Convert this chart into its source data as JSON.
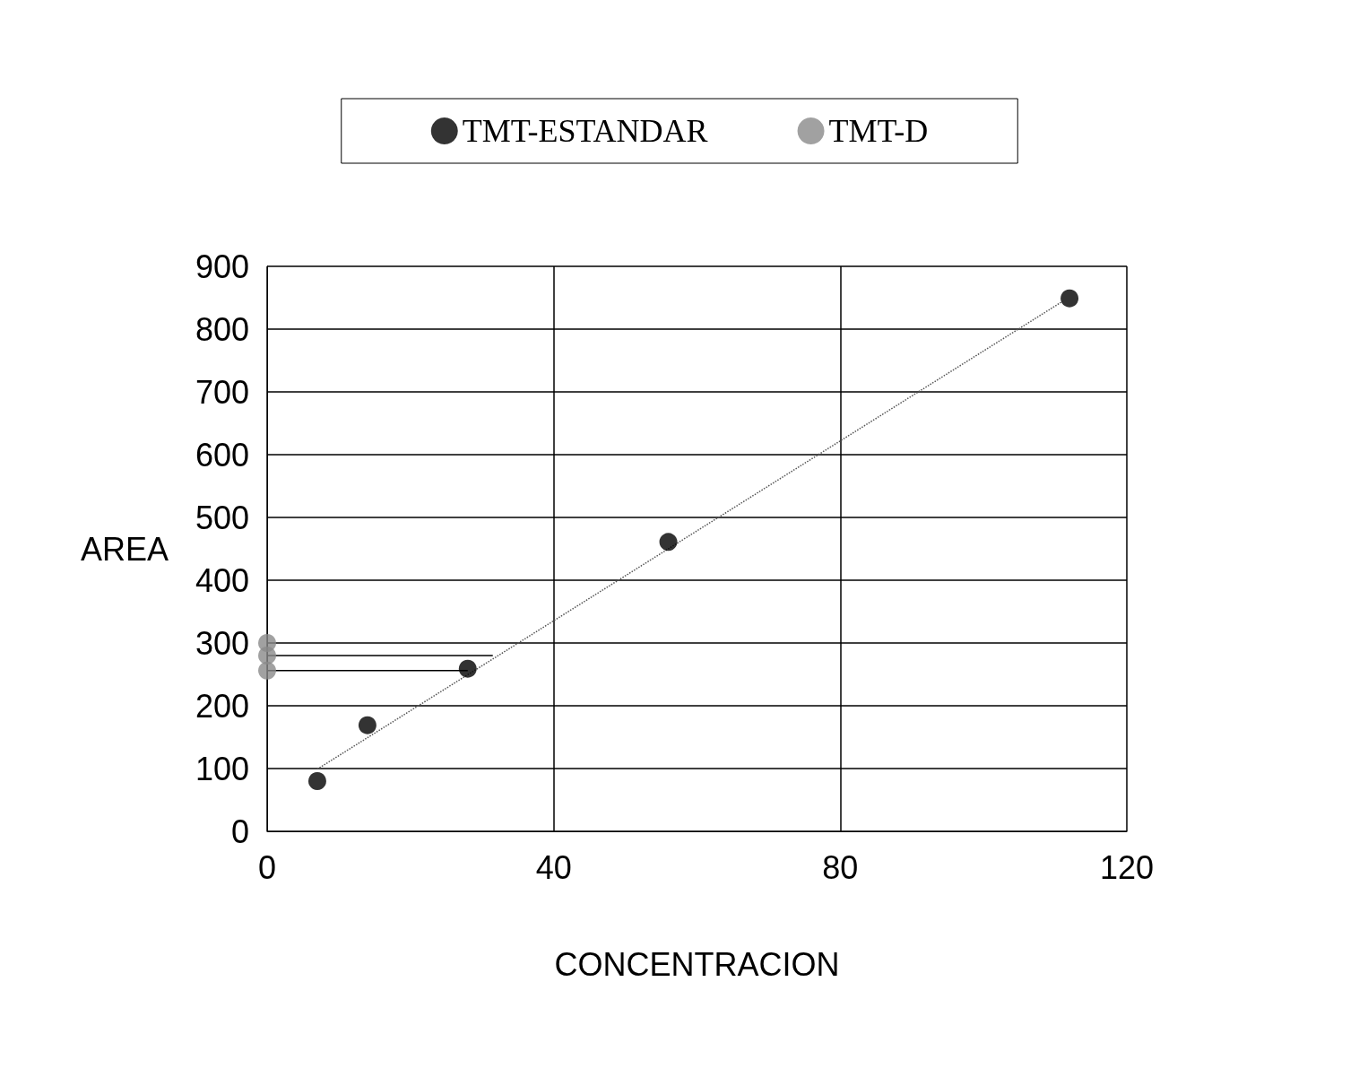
{
  "chart_data": {
    "type": "scatter",
    "xlabel": "CONCENTRACION",
    "ylabel": "AREA",
    "xlim": [
      0,
      120
    ],
    "xticks": [
      0,
      40,
      80,
      120
    ],
    "ylim": [
      0,
      900
    ],
    "yticks": [
      0,
      100,
      200,
      300,
      400,
      500,
      600,
      700,
      800,
      900
    ],
    "grid": true,
    "legend": "top",
    "marker": "circle",
    "series": [
      {
        "name": "TMT-ESTANDAR",
        "color": "#000000",
        "x": [
          7,
          14,
          28,
          56,
          112
        ],
        "values": [
          80,
          169,
          259,
          461,
          849
        ]
      },
      {
        "name": "TMT-D",
        "color": "#8a8a8a",
        "x": [
          0,
          0,
          0
        ],
        "values": [
          300,
          280,
          256
        ]
      },
      {
        "type": "line",
        "color": "#555555",
        "line_style": "dotted",
        "marker": "none",
        "x": [
          7,
          111
        ],
        "values": [
          99,
          844
        ]
      },
      {
        "type": "line",
        "color": "#000000",
        "line_style": "solid",
        "marker": "none",
        "x": [
          0,
          31.5
        ],
        "values": [
          280,
          280
        ]
      },
      {
        "type": "line",
        "color": "#000000",
        "line_style": "solid",
        "marker": "none",
        "x": [
          0,
          28
        ],
        "values": [
          256,
          256
        ]
      }
    ]
  }
}
